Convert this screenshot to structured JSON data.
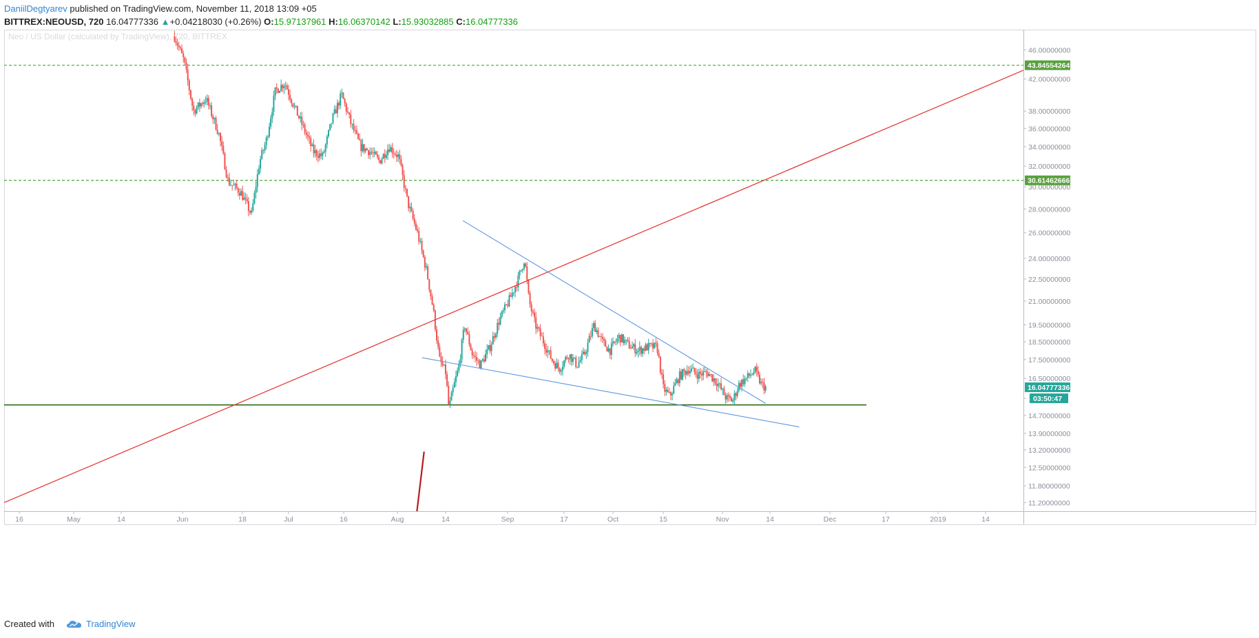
{
  "header": {
    "author": "DaniilDegtyarev",
    "published": " published on TradingView.com, November 11, 2018 13:09 +05",
    "symbol": "BITTREX:NEOUSD, 720",
    "last": "16.04777336",
    "change_arrow": "▲",
    "change": "+0.04218030 (+0.26%)",
    "o_label": "O:",
    "o_value": "15.97137961",
    "h_label": "H:",
    "h_value": "16.06370142",
    "l_label": "L:",
    "l_value": "15.93032885",
    "c_label": "C:",
    "c_value": "16.04777336"
  },
  "footer": {
    "created": "Created with",
    "brand": "TradingView"
  },
  "colors": {
    "up": "#26a69a",
    "down": "#ef5350",
    "trend_red": "#e53935",
    "wedge_blue": "#5a96e0",
    "support_green": "#2e6b12",
    "dashed_green": "#48a83a",
    "tag_green": "#59a13e",
    "tag_teal": "#26a69a",
    "grid": "#eeeff2"
  },
  "chart_data": {
    "type": "candlestick",
    "title": "Neo / US Dollar (calculated by TradingView), 720, BITTREX",
    "yaxis_scale": "log",
    "ylim": [
      10.9,
      49.0
    ],
    "x_tick_labels": [
      "16",
      "May",
      "14",
      "Jun",
      "18",
      "Jul",
      "16",
      "Aug",
      "14",
      "Sep",
      "17",
      "Oct",
      "15",
      "Nov",
      "14",
      "Dec",
      "17",
      "2019",
      "14"
    ],
    "y_tick_labels": [
      "46.00000000",
      "42.00000000",
      "38.00000000",
      "36.00000000",
      "34.00000000",
      "32.00000000",
      "30.00000000",
      "28.00000000",
      "26.00000000",
      "24.00000000",
      "22.50000000",
      "21.00000000",
      "19.50000000",
      "18.50000000",
      "17.50000000",
      "16.50000000",
      "15.5",
      "14.70000000",
      "13.90000000",
      "13.20000000",
      "12.50000000",
      "11.80000000",
      "11.20000000"
    ],
    "y_tick_values": [
      46,
      42,
      38,
      36,
      34,
      32,
      30,
      28,
      26,
      24,
      22.5,
      21,
      19.5,
      18.5,
      17.5,
      16.5,
      15.5,
      14.7,
      13.9,
      13.2,
      12.5,
      11.8,
      11.2
    ],
    "horizontal_levels": [
      {
        "label": "43.84554264",
        "value": 43.84554264,
        "style": "dashed"
      },
      {
        "label": "30.61462666",
        "value": 30.61462666,
        "style": "dashed"
      },
      {
        "value": 15.19,
        "style": "solid"
      }
    ],
    "last_price": {
      "label": "16.04777336",
      "value": 16.04777336
    },
    "countdown": "03:50:47",
    "trend_lines": [
      {
        "name": "red-uptrend",
        "from": [
          -0.02,
          10.9
        ],
        "to": [
          1.1,
          49.4
        ]
      },
      {
        "name": "wedge-upper",
        "from": [
          0.45,
          27.0
        ],
        "to": [
          0.747,
          15.26
        ]
      },
      {
        "name": "wedge-lower",
        "from": [
          0.41,
          17.6
        ],
        "to": [
          0.78,
          14.18
        ]
      },
      {
        "name": "drawing-mark",
        "from": [
          0.405,
          10.9
        ],
        "to": [
          0.412,
          13.13
        ]
      }
    ],
    "price_path_anchors": [
      [
        0.27,
        48.0
      ],
      [
        0.285,
        44.5
      ],
      [
        0.3,
        38.0
      ],
      [
        0.32,
        39.5
      ],
      [
        0.34,
        35.5
      ],
      [
        0.355,
        30.5
      ],
      [
        0.375,
        29.5
      ],
      [
        0.392,
        27.5
      ],
      [
        0.405,
        32.5
      ],
      [
        0.415,
        34.5
      ],
      [
        0.43,
        40.5
      ],
      [
        0.445,
        41.5
      ],
      [
        0.46,
        38.5
      ],
      [
        0.475,
        36.0
      ],
      [
        0.49,
        33.5
      ],
      [
        0.505,
        33.0
      ],
      [
        0.52,
        37.0
      ],
      [
        0.535,
        40.0
      ],
      [
        0.55,
        36.5
      ],
      [
        0.565,
        34.0
      ],
      [
        0.58,
        33.5
      ],
      [
        0.595,
        32.5
      ],
      [
        0.61,
        34.0
      ],
      [
        0.625,
        33.0
      ],
      [
        0.64,
        28.5
      ],
      [
        0.655,
        26.0
      ],
      [
        0.67,
        23.0
      ],
      [
        0.68,
        20.5
      ],
      [
        0.69,
        17.5
      ],
      [
        0.7,
        16.8
      ],
      [
        0.705,
        15.0
      ],
      [
        0.712,
        16.0
      ],
      [
        0.72,
        17.0
      ],
      [
        0.73,
        19.5
      ],
      [
        0.742,
        17.8
      ],
      [
        0.755,
        17.2
      ],
      [
        0.77,
        18.2
      ],
      [
        0.785,
        19.8
      ],
      [
        0.8,
        21.0
      ],
      [
        0.815,
        22.5
      ],
      [
        0.825,
        24.0
      ],
      [
        0.832,
        21.0
      ],
      [
        0.842,
        19.5
      ],
      [
        0.855,
        18.5
      ],
      [
        0.868,
        17.5
      ],
      [
        0.88,
        17.0
      ],
      [
        0.895,
        17.8
      ],
      [
        0.908,
        17.2
      ],
      [
        0.92,
        17.8
      ],
      [
        0.935,
        19.5
      ],
      [
        0.948,
        18.5
      ],
      [
        0.96,
        18.0
      ],
      [
        0.975,
        18.8
      ],
      [
        0.99,
        18.3
      ],
      [
        1.005,
        18.0
      ],
      [
        1.02,
        18.2
      ],
      [
        1.035,
        18.2
      ],
      [
        1.045,
        16.0
      ],
      [
        1.055,
        15.6
      ],
      [
        1.07,
        16.6
      ],
      [
        1.085,
        17.0
      ],
      [
        1.1,
        16.7
      ],
      [
        1.115,
        16.8
      ],
      [
        1.13,
        16.3
      ],
      [
        1.145,
        15.5
      ],
      [
        1.155,
        15.4
      ],
      [
        1.165,
        16.2
      ],
      [
        1.18,
        16.6
      ],
      [
        1.19,
        16.9
      ],
      [
        1.2,
        16.2
      ],
      [
        1.207,
        16.04
      ]
    ]
  }
}
